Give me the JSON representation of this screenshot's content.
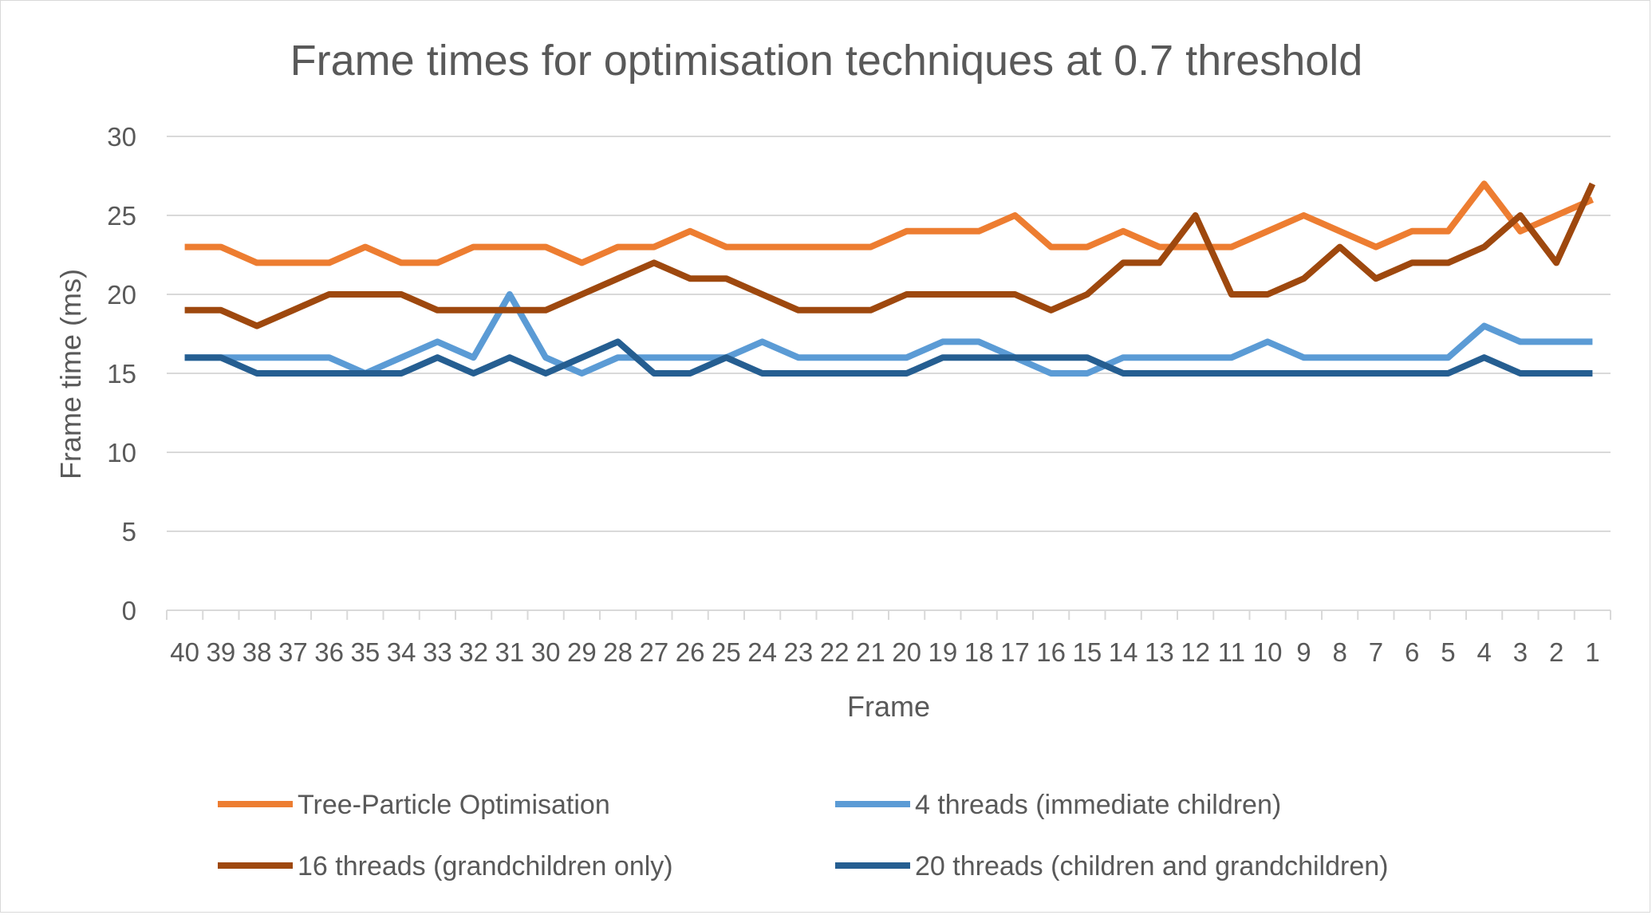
{
  "chart_data": {
    "type": "line",
    "title": "Frame times for optimisation techniques at 0.7 threshold",
    "xlabel": "Frame",
    "ylabel": "Frame time (ms)",
    "ylim": [
      0,
      30
    ],
    "yticks": [
      0,
      5,
      10,
      15,
      20,
      25,
      30
    ],
    "grid": true,
    "legend_position": "bottom",
    "categories": [
      "40",
      "39",
      "38",
      "37",
      "36",
      "35",
      "34",
      "33",
      "32",
      "31",
      "30",
      "29",
      "28",
      "27",
      "26",
      "25",
      "24",
      "23",
      "22",
      "21",
      "20",
      "19",
      "18",
      "17",
      "16",
      "15",
      "14",
      "13",
      "12",
      "11",
      "10",
      "9",
      "8",
      "7",
      "6",
      "5",
      "4",
      "3",
      "2",
      "1"
    ],
    "series": [
      {
        "name": "Tree-Particle Optimisation",
        "color": "#ed7d31",
        "values": [
          23,
          23,
          22,
          22,
          22,
          23,
          22,
          22,
          23,
          23,
          23,
          22,
          23,
          23,
          24,
          23,
          23,
          23,
          23,
          23,
          24,
          24,
          24,
          25,
          23,
          23,
          24,
          23,
          23,
          23,
          24,
          25,
          24,
          23,
          24,
          24,
          27,
          24,
          25,
          26
        ]
      },
      {
        "name": "4 threads (immediate children)",
        "color": "#5b9bd5",
        "values": [
          16,
          16,
          16,
          16,
          16,
          15,
          16,
          17,
          16,
          20,
          16,
          15,
          16,
          16,
          16,
          16,
          17,
          16,
          16,
          16,
          16,
          17,
          17,
          16,
          15,
          15,
          16,
          16,
          16,
          16,
          17,
          16,
          16,
          16,
          16,
          16,
          18,
          17,
          17,
          17
        ]
      },
      {
        "name": "16 threads (grandchildren only)",
        "color": "#9e480e",
        "values": [
          19,
          19,
          18,
          19,
          20,
          20,
          20,
          19,
          19,
          19,
          19,
          20,
          21,
          22,
          21,
          21,
          20,
          19,
          19,
          19,
          20,
          20,
          20,
          20,
          19,
          20,
          22,
          22,
          25,
          20,
          20,
          21,
          23,
          21,
          22,
          22,
          23,
          25,
          22,
          27
        ]
      },
      {
        "name": "20 threads (children and grandchildren)",
        "color": "#255e91",
        "values": [
          16,
          16,
          15,
          15,
          15,
          15,
          15,
          16,
          15,
          16,
          15,
          16,
          17,
          15,
          15,
          16,
          15,
          15,
          15,
          15,
          15,
          16,
          16,
          16,
          16,
          16,
          15,
          15,
          15,
          15,
          15,
          15,
          15,
          15,
          15,
          15,
          16,
          15,
          15,
          15
        ]
      }
    ]
  }
}
